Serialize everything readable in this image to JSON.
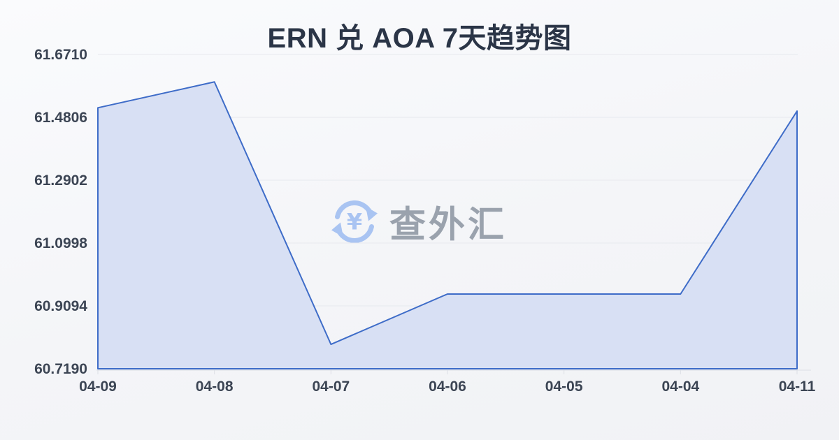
{
  "title": "ERN 兑 AOA 7天趋势图",
  "watermark": {
    "icon": "currency-exchange-icon",
    "text": "查外汇"
  },
  "colors": {
    "line": "#3e6cc8",
    "area_fill": "#d8e0f4",
    "grid": "#e7e9ee",
    "axis": "#dcdfe5",
    "title_text": "#2b3547",
    "axis_label": "#3c4554",
    "watermark_icon": "#a9c4f2",
    "watermark_text": "#9aa2ad"
  },
  "chart_data": {
    "type": "area",
    "title": "ERN 兑 AOA 7天趋势图",
    "categories": [
      "04-09",
      "04-08",
      "04-07",
      "04-06",
      "04-05",
      "04-04",
      "04-11"
    ],
    "values": [
      61.5096,
      61.5879,
      60.793,
      60.9454,
      60.9454,
      60.9454,
      61.4996
    ],
    "y_ticks": [
      "61.6710",
      "61.4806",
      "61.2902",
      "61.0998",
      "60.9094",
      "60.7190"
    ],
    "ylim": [
      60.719,
      61.671
    ],
    "xlabel": "",
    "ylabel": "",
    "grid": true,
    "legend_position": "none"
  }
}
